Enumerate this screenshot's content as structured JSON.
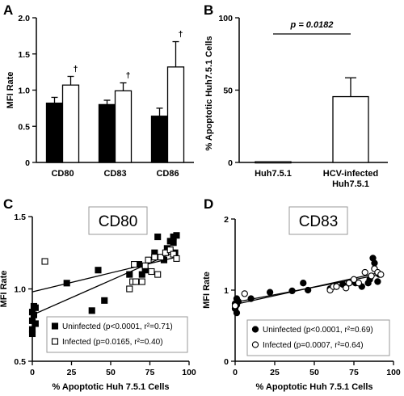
{
  "colors": {
    "ink": "#000000",
    "paper": "#ffffff",
    "box_border": "#9a9a9a"
  },
  "panels": [
    {
      "letter": "A",
      "chart_data": {
        "type": "bar",
        "ylabel": "MFI Rate",
        "ylim": [
          0,
          2.0
        ],
        "yticks": [
          "0",
          "0.5",
          "1.0",
          "1.5",
          "2.0"
        ],
        "categories": [
          "CD80",
          "CD83",
          "CD86"
        ],
        "series": [
          {
            "values": [
              0.82,
              0.8,
              0.64
            ],
            "errors": [
              0.08,
              0.06,
              0.11
            ],
            "fill": "#000000"
          },
          {
            "values": [
              1.07,
              0.99,
              1.32
            ],
            "errors": [
              0.12,
              0.11,
              0.35
            ],
            "fill": "#ffffff"
          }
        ],
        "markers": [
          "†",
          "†",
          "†"
        ]
      }
    },
    {
      "letter": "B",
      "chart_data": {
        "type": "bar",
        "ylabel": "% Apoptotic Huh7.5.1 Cells",
        "ylim": [
          0,
          100
        ],
        "yticks": [
          "0",
          "50",
          "100"
        ],
        "categories": [
          [
            "Huh7.5.1"
          ],
          [
            "HCV-infected",
            "Huh7.5.1"
          ]
        ],
        "values": [
          0.5,
          45.5
        ],
        "errors": [
          0,
          13
        ],
        "annotation": "p = 0.0182"
      }
    },
    {
      "letter": "C",
      "chart_data": {
        "type": "scatter",
        "title": "CD80",
        "xlabel": "% Apoptotic Huh 7.5.1 Cells",
        "ylabel": "MFI Rate",
        "xlim": [
          0,
          100
        ],
        "ylim": [
          0.5,
          1.5
        ],
        "xticks": [
          "0",
          "25",
          "50",
          "75",
          "100"
        ],
        "yticks": [
          "0.5",
          "1.0",
          "1.5"
        ],
        "series": [
          {
            "name": "Uninfected (p<0.0001, r²=0.71)",
            "marker": "filled-square",
            "points": [
              [
                0,
                0.84
              ],
              [
                0,
                0.78
              ],
              [
                0,
                0.72
              ],
              [
                0,
                0.69
              ],
              [
                1,
                0.88
              ],
              [
                1,
                0.82
              ],
              [
                2,
                0.87
              ],
              [
                2,
                0.76
              ],
              [
                22,
                1.04
              ],
              [
                38,
                0.85
              ],
              [
                42,
                1.13
              ],
              [
                46,
                0.92
              ],
              [
                62,
                1.1
              ],
              [
                68,
                1.17
              ],
              [
                70,
                1.1
              ],
              [
                72,
                1.13
              ],
              [
                78,
                1.25
              ],
              [
                80,
                1.36
              ],
              [
                84,
                1.2
              ],
              [
                86,
                1.28
              ],
              [
                88,
                1.33
              ],
              [
                90,
                1.36
              ],
              [
                90,
                1.32
              ],
              [
                91,
                1.25
              ],
              [
                92,
                1.37
              ]
            ],
            "fit": [
              [
                0,
                0.82
              ],
              [
                92,
                1.26
              ]
            ]
          },
          {
            "name": "Infected (p=0.0165, r²=0.40)",
            "marker": "open-square",
            "points": [
              [
                8,
                1.19
              ],
              [
                62,
                1.0
              ],
              [
                64,
                1.05
              ],
              [
                65,
                1.17
              ],
              [
                66,
                1.05
              ],
              [
                70,
                1.05
              ],
              [
                72,
                1.16
              ],
              [
                74,
                1.2
              ],
              [
                76,
                1.12
              ],
              [
                78,
                1.22
              ],
              [
                80,
                1.1
              ],
              [
                82,
                1.22
              ],
              [
                85,
                1.25
              ],
              [
                88,
                1.27
              ],
              [
                90,
                1.24
              ],
              [
                92,
                1.21
              ]
            ],
            "fit": [
              [
                0,
                0.98
              ],
              [
                92,
                1.22
              ]
            ]
          }
        ]
      }
    },
    {
      "letter": "D",
      "chart_data": {
        "type": "scatter",
        "title": "CD83",
        "xlabel": "% Apoptotic Huh 7.5.1 Cells",
        "ylabel": "MFI Rate",
        "xlim": [
          0,
          100
        ],
        "ylim": [
          0,
          2
        ],
        "xticks": [
          "0",
          "25",
          "50",
          "75",
          "100"
        ],
        "yticks": [
          "0",
          "1",
          "2"
        ],
        "series": [
          {
            "name": "Uninfected (p<0.0001, r²=0.69)",
            "marker": "filled-circle",
            "points": [
              [
                0,
                0.81
              ],
              [
                0,
                0.74
              ],
              [
                1,
                0.88
              ],
              [
                1,
                0.79
              ],
              [
                1,
                0.68
              ],
              [
                2,
                0.84
              ],
              [
                10,
                0.88
              ],
              [
                22,
                0.97
              ],
              [
                36,
                0.99
              ],
              [
                43,
                1.1
              ],
              [
                46,
                1.0
              ],
              [
                60,
                1.02
              ],
              [
                64,
                1.05
              ],
              [
                68,
                1.08
              ],
              [
                72,
                1.1
              ],
              [
                76,
                1.1
              ],
              [
                80,
                1.05
              ],
              [
                84,
                1.1
              ],
              [
                85,
                1.15
              ],
              [
                87,
                1.45
              ],
              [
                88,
                1.38
              ],
              [
                88,
                1.3
              ],
              [
                90,
                1.12
              ],
              [
                91,
                1.22
              ]
            ],
            "fit": [
              [
                0,
                0.8
              ],
              [
                92,
                1.25
              ]
            ]
          },
          {
            "name": "Infected (p=0.0007, r²=0.64)",
            "marker": "open-circle",
            "points": [
              [
                0,
                0.78
              ],
              [
                6,
                0.95
              ],
              [
                60,
                1.0
              ],
              [
                62,
                1.05
              ],
              [
                64,
                1.05
              ],
              [
                70,
                1.03
              ],
              [
                72,
                1.1
              ],
              [
                75,
                1.15
              ],
              [
                78,
                1.1
              ],
              [
                82,
                1.25
              ],
              [
                86,
                1.2
              ],
              [
                88,
                1.3
              ],
              [
                90,
                1.25
              ],
              [
                92,
                1.22
              ]
            ],
            "fit": [
              [
                0,
                0.83
              ],
              [
                92,
                1.22
              ]
            ]
          }
        ]
      }
    }
  ]
}
